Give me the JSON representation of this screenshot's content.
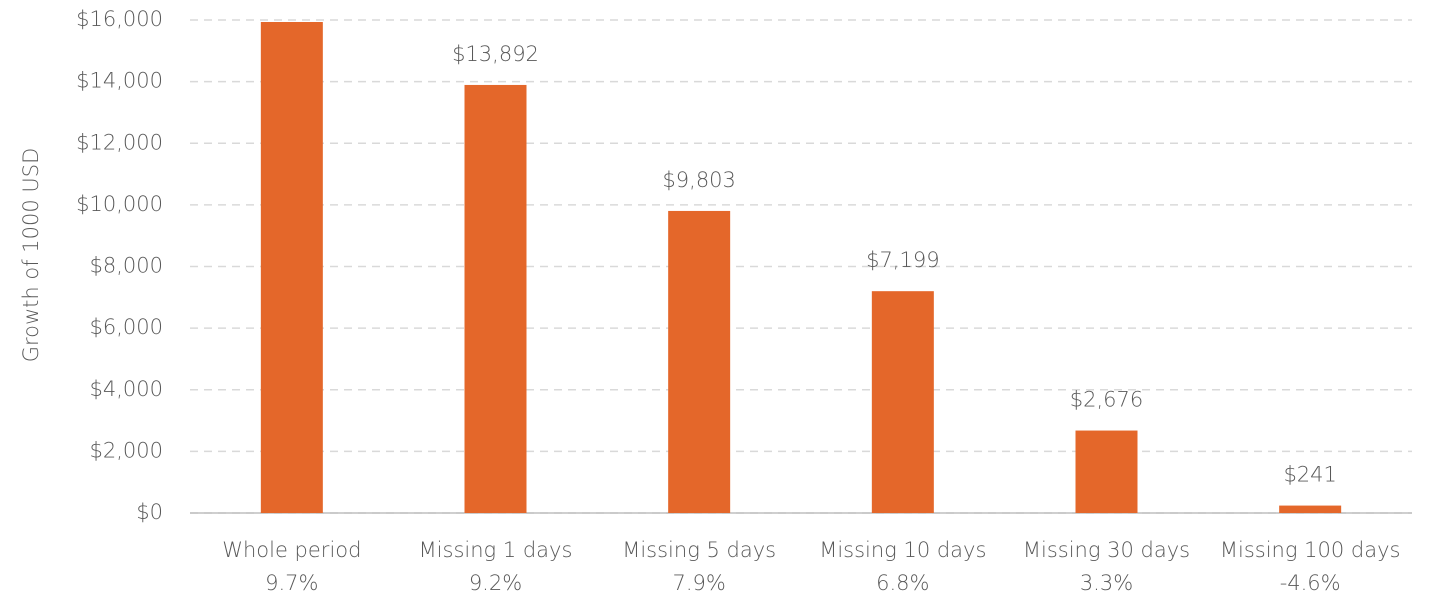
{
  "chart_data": {
    "type": "bar",
    "y_axis_label": "Growth of 1000 USD",
    "categories": [
      "Whole period",
      "Missing 1 days",
      "Missing 5 days",
      "Missing 10 days",
      "Missing 30 days",
      "Missing 100 days"
    ],
    "annualized_returns": [
      "9.7%",
      "9.2%",
      "7.9%",
      "6.8%",
      "3.3%",
      "-4.6%"
    ],
    "values": [
      15935,
      13892,
      9803,
      7199,
      2676,
      241
    ],
    "value_labels": [
      null,
      "$13,892",
      "$9,803",
      "$7,199",
      "$2,676",
      "$241"
    ],
    "color": "#e4672a",
    "ylim": [
      0,
      16000
    ],
    "yticks": [
      {
        "value": 0,
        "label": "$0"
      },
      {
        "value": 2000,
        "label": "$2,000"
      },
      {
        "value": 4000,
        "label": "$4,000"
      },
      {
        "value": 6000,
        "label": "$6,000"
      },
      {
        "value": 8000,
        "label": "$8,000"
      },
      {
        "value": 10000,
        "label": "$10,000"
      },
      {
        "value": 12000,
        "label": "$12,000"
      },
      {
        "value": 14000,
        "label": "$14,000"
      },
      {
        "value": 16000,
        "label": "$16,000"
      }
    ],
    "grid": true
  }
}
